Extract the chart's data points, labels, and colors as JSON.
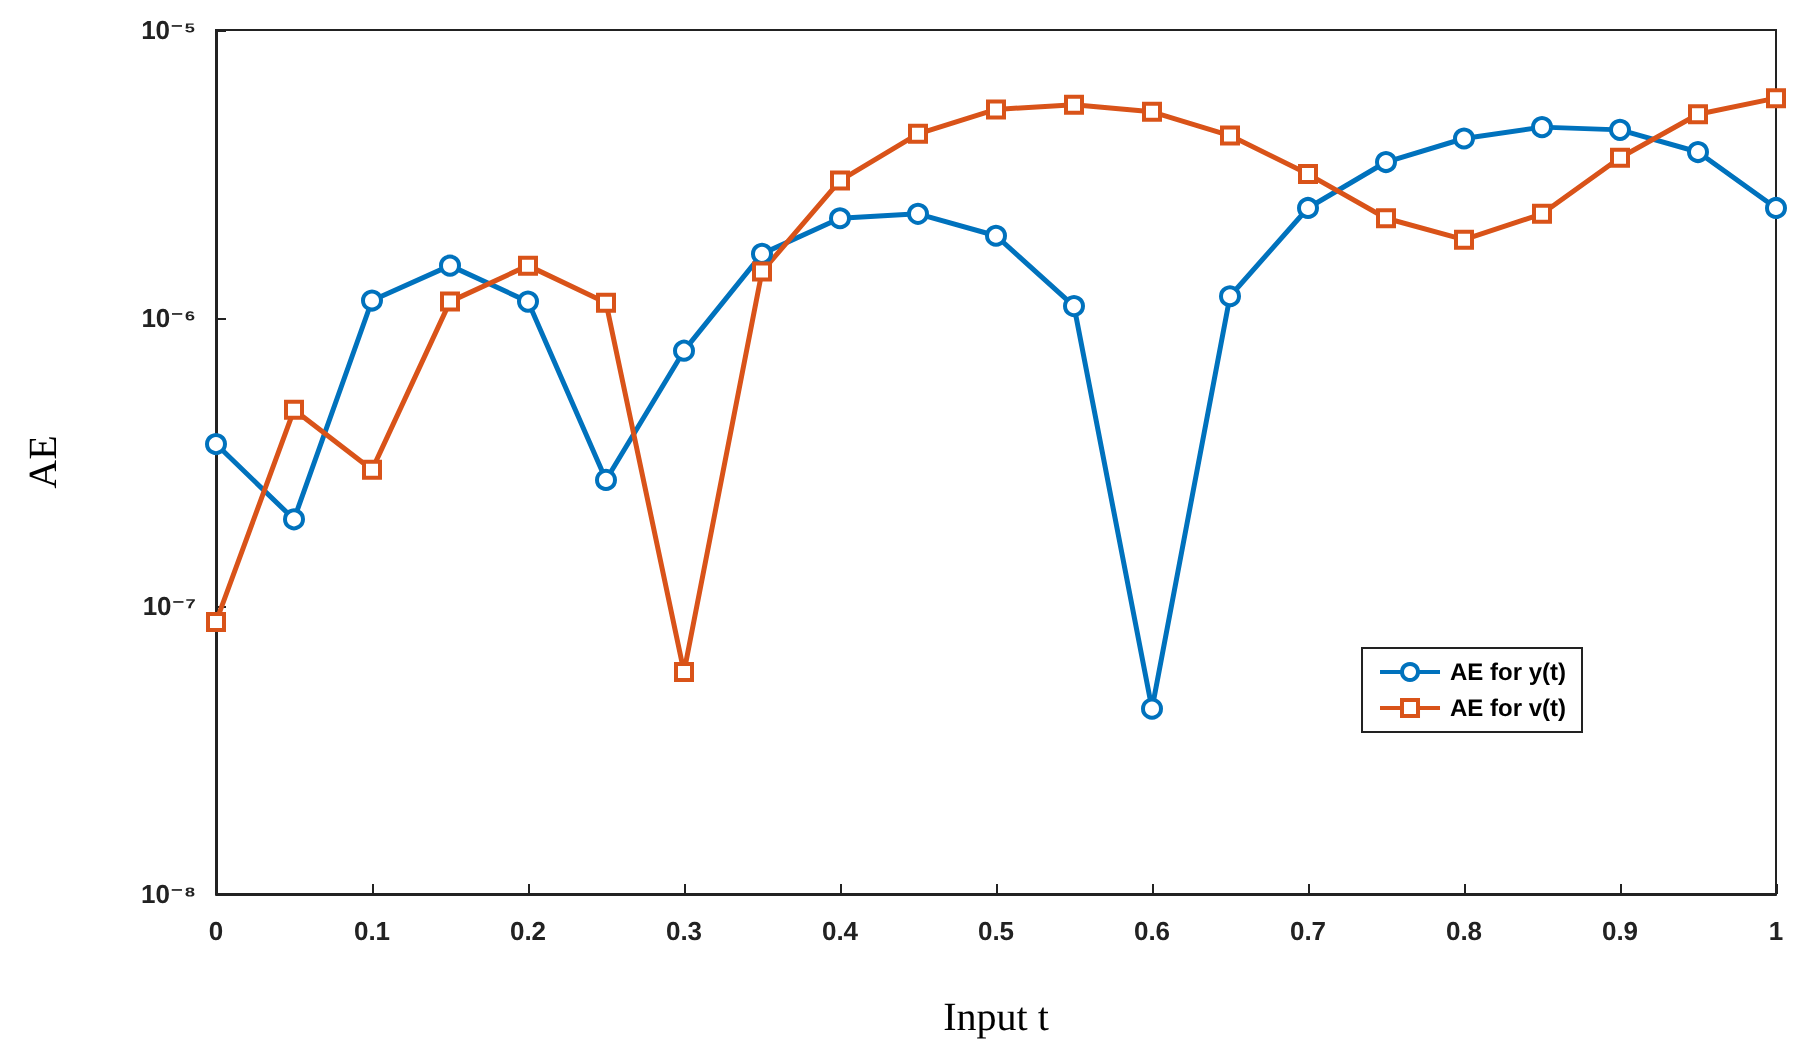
{
  "chart_data": {
    "type": "line",
    "xlabel": "Input t",
    "ylabel": "AE",
    "x": [
      0,
      0.05,
      0.1,
      0.15,
      0.2,
      0.25,
      0.3,
      0.35,
      0.4,
      0.45,
      0.5,
      0.55,
      0.6,
      0.65,
      0.7,
      0.75,
      0.8,
      0.85,
      0.9,
      0.95,
      1
    ],
    "series": [
      {
        "name": "AE for y(t)",
        "color": "#0072bd",
        "marker": "circle",
        "values": [
          3.65e-07,
          2e-07,
          1.15e-06,
          1.52e-06,
          1.14e-06,
          2.74e-07,
          7.7e-07,
          1.67e-06,
          2.22e-06,
          2.3e-06,
          1.93e-06,
          1.1e-06,
          4.4e-08,
          1.19e-06,
          2.41e-06,
          3.48e-06,
          4.2e-06,
          4.6e-06,
          4.5e-06,
          3.77e-06,
          2.41e-06
        ]
      },
      {
        "name": "AE for v(t)",
        "color": "#d95319",
        "marker": "square",
        "values": [
          8.8e-08,
          4.8e-07,
          2.97e-07,
          1.14e-06,
          1.52e-06,
          1.13e-06,
          5.9e-08,
          1.45e-06,
          3e-06,
          4.36e-06,
          5.3e-06,
          5.5e-06,
          5.2e-06,
          4.3e-06,
          3.16e-06,
          2.22e-06,
          1.87e-06,
          2.3e-06,
          3.6e-06,
          5.1e-06,
          5.8e-06
        ]
      }
    ],
    "xlim": [
      0,
      1
    ],
    "xticks": [
      0,
      0.1,
      0.2,
      0.3,
      0.4,
      0.5,
      0.6,
      0.7,
      0.8,
      0.9,
      1
    ],
    "ylim": [
      1e-08,
      1e-05
    ],
    "yticks": [
      {
        "value": 1e-08,
        "label": "10⁻⁸"
      },
      {
        "value": 1e-07,
        "label": "10⁻⁷"
      },
      {
        "value": 1e-06,
        "label": "10⁻⁶"
      },
      {
        "value": 1e-05,
        "label": "10⁻⁵"
      }
    ],
    "log": "y",
    "grid": false,
    "legend": "bottom right",
    "line_style": "solid"
  }
}
